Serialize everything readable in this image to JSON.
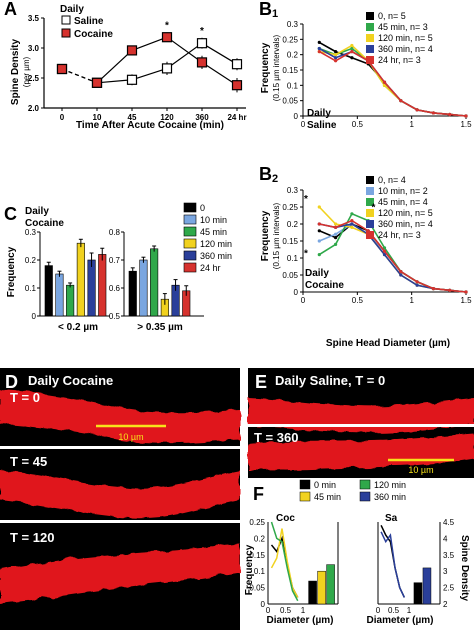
{
  "colors": {
    "saline": "#ffffff",
    "cocaine": "#d6322e",
    "t0": "#000000",
    "t10": "#7aa6e0",
    "t45": "#2fa84a",
    "t120": "#f1d21f",
    "t360": "#2a3f9a",
    "t24": "#d6322e",
    "dendrite": "#e0191b"
  },
  "panels": {
    "A": "A",
    "B1": "B",
    "B1sub": "1",
    "B2": "B",
    "B2sub": "2",
    "C": "C",
    "D": "D",
    "E": "E",
    "F": "F"
  },
  "chart_data": [
    {
      "id": "A",
      "type": "line",
      "group_title": "Daily",
      "categories": [
        "0",
        "10",
        "45",
        "120",
        "360",
        "24 hr"
      ],
      "xlabel": "Time After Acute Cocaine (min)",
      "ylabel": "Spine Density",
      "ylabel_unit": "(per µm)",
      "ylim": [
        2.0,
        3.5
      ],
      "yticks": [
        "2.0",
        "2.5",
        "3.0",
        "3.5"
      ],
      "series": [
        {
          "name": "Saline",
          "values": [
            2.65,
            2.42,
            2.47,
            2.66,
            3.08,
            2.73
          ],
          "err": [
            0.08,
            0.07,
            0.09,
            0.11,
            0.09,
            0.1
          ]
        },
        {
          "name": "Cocaine",
          "values": [
            2.65,
            2.42,
            2.96,
            3.18,
            2.76,
            2.38
          ],
          "err": [
            0.08,
            0.07,
            0.08,
            0.08,
            0.11,
            0.12
          ]
        }
      ],
      "annotations": [
        {
          "text": "*",
          "category": "120"
        },
        {
          "text": "*",
          "category": "360"
        }
      ]
    },
    {
      "id": "B1",
      "type": "line",
      "inner_label": [
        "Daily",
        "Saline"
      ],
      "xlabel": "",
      "ylabel": "Frequency",
      "ylabel_unit": "(0.15 µm intervals)",
      "xlim": [
        0,
        1.5
      ],
      "xticks": [
        "0",
        "0.5",
        "1",
        "1.5"
      ],
      "ylim": [
        0,
        0.3
      ],
      "yticks": [
        "0",
        "0.05",
        "0.1",
        "0.15",
        "0.2",
        "0.25",
        "0.3"
      ],
      "x": [
        0.15,
        0.3,
        0.45,
        0.6,
        0.75,
        0.9,
        1.05,
        1.2,
        1.35,
        1.5
      ],
      "series": [
        {
          "name": "0, n= 5",
          "values": [
            0.24,
            0.21,
            0.19,
            0.17,
            0.11,
            0.05,
            0.02,
            0.01,
            0.005,
            0.0
          ]
        },
        {
          "name": "45 min, n= 3",
          "values": [
            0.22,
            0.2,
            0.22,
            0.18,
            0.1,
            0.05,
            0.02,
            0.01,
            0.005,
            0.0
          ]
        },
        {
          "name": "120 min, n= 5",
          "values": [
            0.21,
            0.2,
            0.23,
            0.18,
            0.1,
            0.05,
            0.02,
            0.01,
            0.005,
            0.0
          ]
        },
        {
          "name": "360 min, n= 4",
          "values": [
            0.22,
            0.19,
            0.21,
            0.18,
            0.11,
            0.05,
            0.02,
            0.01,
            0.005,
            0.0
          ]
        },
        {
          "name": "24 hr, n= 3",
          "values": [
            0.21,
            0.18,
            0.21,
            0.18,
            0.11,
            0.05,
            0.02,
            0.01,
            0.005,
            0.0
          ]
        }
      ]
    },
    {
      "id": "B2",
      "type": "line",
      "inner_label": [
        "Daily",
        "Cocaine"
      ],
      "xlabel": "Spine Head Diameter (µm)",
      "ylabel": "Frequency",
      "ylabel_unit": "(0.15 µm intervals)",
      "xlim": [
        0,
        1.5
      ],
      "xticks": [
        "0",
        "0.5",
        "1",
        "1.5"
      ],
      "ylim": [
        0,
        0.3
      ],
      "yticks": [
        "0",
        "0.05",
        "0.1",
        "0.15",
        "0.2",
        "0.25",
        "0.3"
      ],
      "x": [
        0.15,
        0.3,
        0.45,
        0.6,
        0.75,
        0.9,
        1.05,
        1.2,
        1.35,
        1.5
      ],
      "series": [
        {
          "name": "0, n= 4",
          "values": [
            0.18,
            0.16,
            0.2,
            0.18,
            0.12,
            0.06,
            0.03,
            0.01,
            0.005,
            0.0
          ]
        },
        {
          "name": "10 min, n= 2",
          "values": [
            0.15,
            0.17,
            0.2,
            0.17,
            0.12,
            0.06,
            0.03,
            0.01,
            0.005,
            0.0
          ]
        },
        {
          "name": "45 min, n= 4",
          "values": [
            0.11,
            0.14,
            0.23,
            0.21,
            0.13,
            0.06,
            0.03,
            0.01,
            0.005,
            0.0
          ]
        },
        {
          "name": "120 min, n= 5",
          "values": [
            0.25,
            0.2,
            0.19,
            0.17,
            0.11,
            0.05,
            0.02,
            0.01,
            0.005,
            0.0
          ]
        },
        {
          "name": "360 min, n= 4",
          "values": [
            0.2,
            0.19,
            0.2,
            0.17,
            0.11,
            0.05,
            0.02,
            0.01,
            0.005,
            0.0
          ]
        },
        {
          "name": "24 hr, n= 3",
          "values": [
            0.2,
            0.19,
            0.21,
            0.18,
            0.12,
            0.06,
            0.03,
            0.01,
            0.005,
            0.0
          ]
        }
      ],
      "annotations": [
        "*",
        "*",
        "*"
      ]
    },
    {
      "id": "C",
      "type": "bar",
      "inner_label": [
        "Daily",
        "Cocaine"
      ],
      "ylabel": "Frequency",
      "groups": [
        "< 0.2 µm",
        "> 0.35 µm"
      ],
      "legend": [
        "0",
        "10 min",
        "45 min",
        "120 min",
        "360 min",
        "24 hr"
      ],
      "left": {
        "ylim": [
          0,
          0.3
        ],
        "yticks": [
          "0",
          "0.1",
          "0.2",
          "0.3"
        ],
        "values": [
          0.18,
          0.15,
          0.11,
          0.26,
          0.2,
          0.22
        ],
        "err": [
          0.012,
          0.01,
          0.008,
          0.014,
          0.025,
          0.022
        ]
      },
      "right": {
        "ylim": [
          0.5,
          0.8
        ],
        "yticks": [
          "0.5",
          "0.6",
          "0.7",
          "0.8"
        ],
        "values": [
          0.66,
          0.7,
          0.74,
          0.56,
          0.61,
          0.59
        ],
        "err": [
          0.012,
          0.01,
          0.01,
          0.02,
          0.02,
          0.018
        ]
      }
    },
    {
      "id": "F",
      "type": "line",
      "xlabel": "Diameter (µm)",
      "ylabel": "Frequency",
      "ylabel_right": "Spine Density",
      "legend": [
        "0 min",
        "45 min",
        "120 min",
        "360 min"
      ],
      "coc": {
        "title": "Coc",
        "xticks": [
          "0",
          "0.5",
          "1"
        ],
        "yticks": [
          "0",
          "0.05",
          "0.1",
          "0.15",
          "0.2",
          "0.25"
        ],
        "lines": [
          {
            "name": "0 min",
            "x": [
              0.1,
              0.25,
              0.4,
              0.55,
              0.7,
              0.85
            ],
            "values": [
              0.18,
              0.16,
              0.2,
              0.12,
              0.05,
              0.02
            ]
          },
          {
            "name": "45 min",
            "x": [
              0.1,
              0.25,
              0.4,
              0.55,
              0.7,
              0.85
            ],
            "values": [
              0.11,
              0.14,
              0.23,
              0.13,
              0.05,
              0.02
            ]
          },
          {
            "name": "120 min",
            "x": [
              0.1,
              0.25,
              0.4,
              0.55,
              0.7,
              0.85
            ],
            "values": [
              0.25,
              0.2,
              0.19,
              0.11,
              0.04,
              0.01
            ]
          }
        ],
        "bars": [
          {
            "name": "0 min",
            "value": 2.7
          },
          {
            "name": "45 min",
            "value": 3.0
          },
          {
            "name": "120 min",
            "value": 3.2
          }
        ]
      },
      "sa": {
        "title": "Sa",
        "xticks": [
          "0",
          "0.5",
          "1"
        ],
        "right_yticks": [
          "2",
          "2.5",
          "3",
          "3.5",
          "4",
          "4.5"
        ],
        "lines": [
          {
            "name": "0 min",
            "x": [
              0.1,
              0.25,
              0.4,
              0.55,
              0.7,
              0.85
            ],
            "values": [
              0.24,
              0.21,
              0.19,
              0.11,
              0.05,
              0.02
            ]
          },
          {
            "name": "360 min",
            "x": [
              0.1,
              0.25,
              0.4,
              0.55,
              0.7,
              0.85
            ],
            "values": [
              0.22,
              0.19,
              0.21,
              0.11,
              0.05,
              0.02
            ]
          }
        ],
        "bars": [
          {
            "name": "0 min",
            "value": 2.65
          },
          {
            "name": "360 min",
            "value": 3.1
          }
        ]
      }
    }
  ],
  "images": {
    "D": {
      "title": "Daily Cocaine",
      "frames": [
        "T = 0",
        "T = 45",
        "T = 120"
      ],
      "scalebar": "10 µm"
    },
    "E": {
      "title": "Daily Saline, T = 0",
      "frames": [
        "T = 360"
      ],
      "scalebar": "10 µm"
    }
  }
}
